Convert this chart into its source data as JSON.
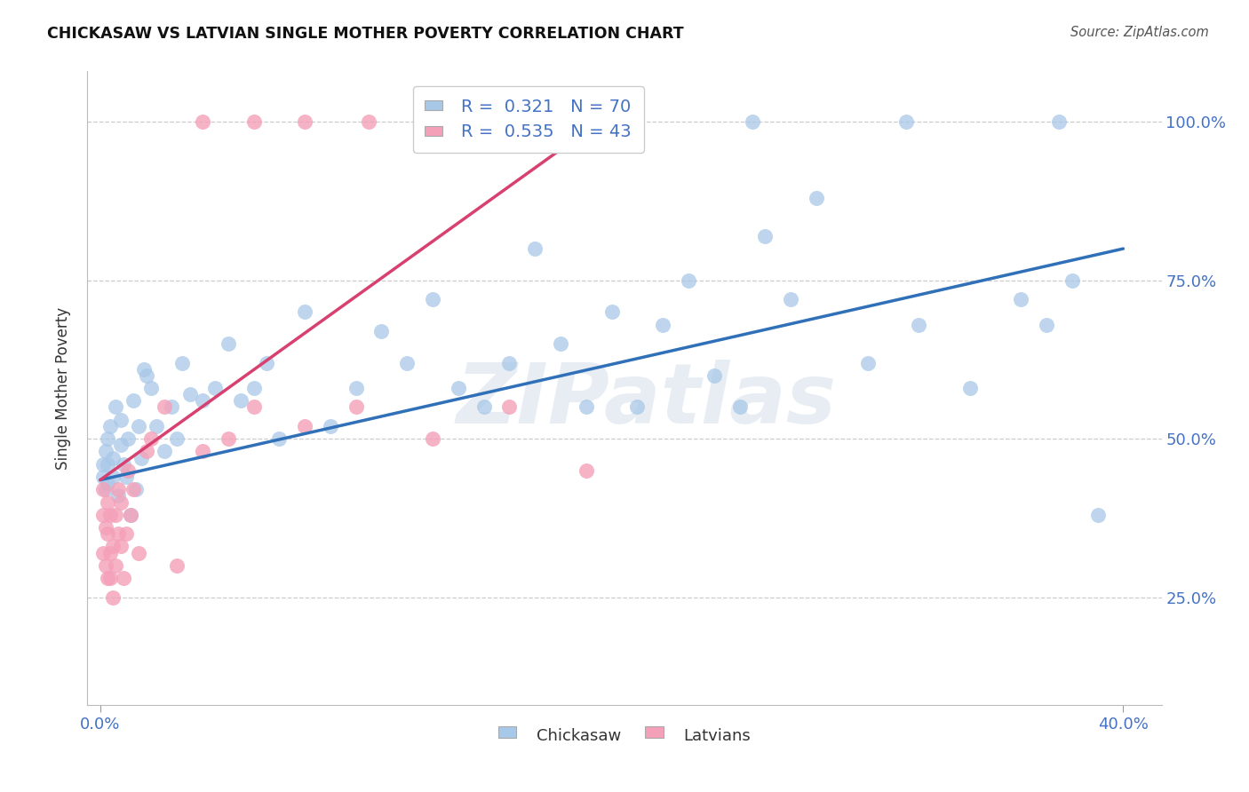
{
  "title": "CHICKASAW VS LATVIAN SINGLE MOTHER POVERTY CORRELATION CHART",
  "source": "Source: ZipAtlas.com",
  "ylabel": "Single Mother Poverty",
  "xlim": [
    -0.005,
    0.415
  ],
  "ylim": [
    0.08,
    1.08
  ],
  "ytick_labels": [
    "25.0%",
    "50.0%",
    "75.0%",
    "100.0%"
  ],
  "ytick_values": [
    0.25,
    0.5,
    0.75,
    1.0
  ],
  "xtick_labels": [
    "0.0%",
    "40.0%"
  ],
  "xtick_values": [
    0.0,
    0.4
  ],
  "legend_label1": "Chickasaw",
  "legend_label2": "Latvians",
  "blue_scatter_color": "#a8c8e8",
  "pink_scatter_color": "#f4a0b8",
  "blue_line_color": "#3070b8",
  "pink_line_color": "#d84070",
  "watermark": "ZIPatlas",
  "blue_line_x": [
    0.0,
    0.4
  ],
  "blue_line_y": [
    0.435,
    0.8
  ],
  "pink_line_x": [
    0.0,
    0.195
  ],
  "pink_line_y": [
    0.435,
    1.0
  ],
  "chickasaw_x": [
    0.001,
    0.001,
    0.002,
    0.002,
    0.003,
    0.003,
    0.003,
    0.004,
    0.005,
    0.005,
    0.006,
    0.007,
    0.008,
    0.008,
    0.009,
    0.01,
    0.011,
    0.012,
    0.013,
    0.014,
    0.015,
    0.016,
    0.017,
    0.018,
    0.02,
    0.022,
    0.025,
    0.028,
    0.03,
    0.032,
    0.035,
    0.04,
    0.045,
    0.05,
    0.055,
    0.06,
    0.065,
    0.07,
    0.08,
    0.09,
    0.1,
    0.11,
    0.12,
    0.13,
    0.14,
    0.15,
    0.16,
    0.17,
    0.18,
    0.19,
    0.2,
    0.21,
    0.22,
    0.23,
    0.24,
    0.25,
    0.26,
    0.27,
    0.28,
    0.3,
    0.32,
    0.34,
    0.36,
    0.37,
    0.38,
    0.39,
    0.145,
    0.255,
    0.315,
    0.375
  ],
  "chickasaw_y": [
    0.44,
    0.46,
    0.42,
    0.48,
    0.46,
    0.5,
    0.43,
    0.52,
    0.47,
    0.44,
    0.55,
    0.41,
    0.49,
    0.53,
    0.46,
    0.44,
    0.5,
    0.38,
    0.56,
    0.42,
    0.52,
    0.47,
    0.61,
    0.6,
    0.58,
    0.52,
    0.48,
    0.55,
    0.5,
    0.62,
    0.57,
    0.56,
    0.58,
    0.65,
    0.56,
    0.58,
    0.62,
    0.5,
    0.7,
    0.52,
    0.58,
    0.67,
    0.62,
    0.72,
    0.58,
    0.55,
    0.62,
    0.8,
    0.65,
    0.55,
    0.7,
    0.55,
    0.68,
    0.75,
    0.6,
    0.55,
    0.82,
    0.72,
    0.88,
    0.62,
    0.68,
    0.58,
    0.72,
    0.68,
    0.75,
    0.38,
    1.0,
    1.0,
    1.0,
    1.0
  ],
  "latvian_x": [
    0.001,
    0.001,
    0.001,
    0.002,
    0.002,
    0.003,
    0.003,
    0.003,
    0.004,
    0.004,
    0.004,
    0.005,
    0.005,
    0.006,
    0.006,
    0.007,
    0.007,
    0.008,
    0.008,
    0.009,
    0.01,
    0.011,
    0.012,
    0.013,
    0.015,
    0.018,
    0.02,
    0.025,
    0.03,
    0.04,
    0.05,
    0.06,
    0.08,
    0.1,
    0.13,
    0.16,
    0.19,
    0.04,
    0.06,
    0.08,
    0.105,
    0.15,
    0.205
  ],
  "latvian_y": [
    0.42,
    0.38,
    0.32,
    0.36,
    0.3,
    0.28,
    0.35,
    0.4,
    0.32,
    0.28,
    0.38,
    0.25,
    0.33,
    0.38,
    0.3,
    0.35,
    0.42,
    0.4,
    0.33,
    0.28,
    0.35,
    0.45,
    0.38,
    0.42,
    0.32,
    0.48,
    0.5,
    0.55,
    0.3,
    0.48,
    0.5,
    0.55,
    0.52,
    0.55,
    0.5,
    0.55,
    0.45,
    1.0,
    1.0,
    1.0,
    1.0,
    1.0,
    1.0
  ]
}
